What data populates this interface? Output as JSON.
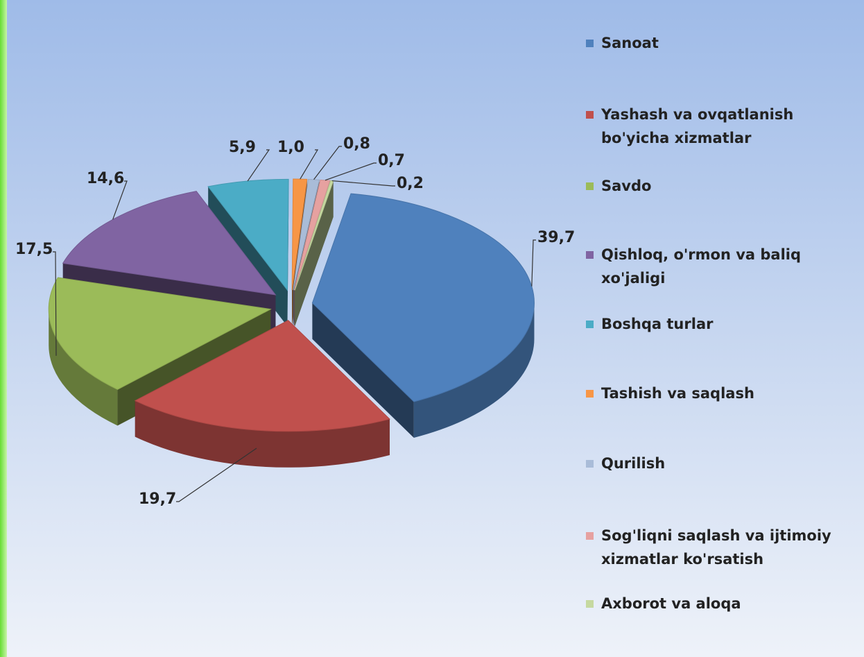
{
  "chart_data": {
    "type": "pie",
    "categories": [
      "Sanoat",
      "Yashash va ovqatlanish bo'yicha xizmatlar",
      "Savdo",
      "Qishloq, o'rmon va baliq xo'jaligi",
      "Boshqa turlar",
      "Tashish va saqlash",
      "Qurilish",
      "Sog'liqni saqlash va ijtimoiy xizmatlar ko'rsatish",
      "Axborot va aloqa"
    ],
    "values": [
      39.7,
      19.7,
      17.5,
      14.6,
      5.9,
      1.0,
      0.8,
      0.7,
      0.2
    ],
    "value_labels": [
      "39,7",
      "19,7",
      "17,5",
      "14,6",
      "5,9",
      "1,0",
      "0,8",
      "0,7",
      "0,2"
    ],
    "colors": [
      "#4f81bd",
      "#c0504d",
      "#9bbb59",
      "#8064a2",
      "#4bacc6",
      "#f79646",
      "#a9bcd8",
      "#e6a1a0",
      "#c6d9a0"
    ],
    "legend": "right"
  }
}
